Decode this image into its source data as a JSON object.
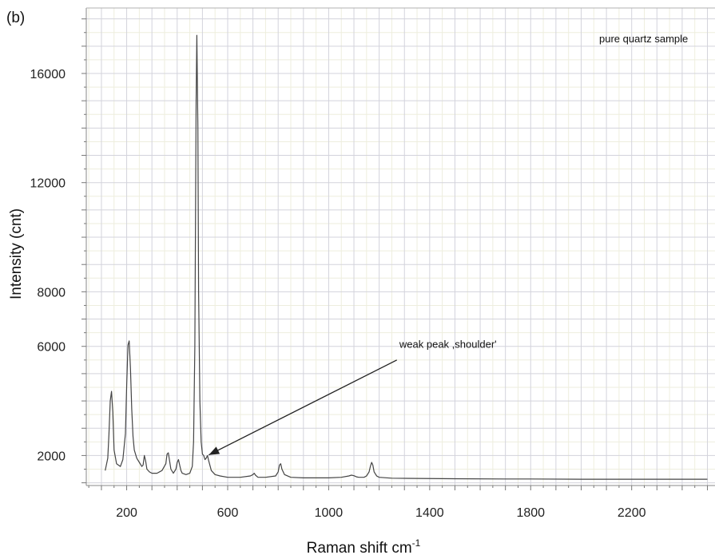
{
  "chart_data": {
    "type": "line",
    "panel_label": "(b)",
    "legend_text": "pure quartz sample",
    "xlabel": "Raman shift cm",
    "xlabel_sup": "-1",
    "ylabel": "Intensity (cnt)",
    "xlim": [
      40,
      2530
    ],
    "ylim": [
      900,
      18400
    ],
    "x_ticks": [
      {
        "value": 200,
        "label": "200"
      },
      {
        "value": 600,
        "label": "600"
      },
      {
        "value": 1000,
        "label": "1000"
      },
      {
        "value": 1400,
        "label": "1400"
      },
      {
        "value": 1800,
        "label": "1800"
      },
      {
        "value": 2200,
        "label": "2200"
      }
    ],
    "y_ticks": [
      {
        "value": 2000,
        "label": "2000"
      },
      {
        "value": 6000,
        "label": "6000"
      },
      {
        "value": 8000,
        "label": "8000"
      },
      {
        "value": 12000,
        "label": "12000"
      },
      {
        "value": 16000,
        "label": "16000"
      }
    ],
    "grid": true,
    "annotation": {
      "text": "weak peak ,shoulder'",
      "text_at": [
        1280,
        5950
      ],
      "arrow_from": [
        1270,
        5500
      ],
      "arrow_to": [
        525,
        2020
      ]
    },
    "series": [
      {
        "color": "#444444",
        "x": [
          115,
          125,
          130,
          135,
          140,
          145,
          150,
          160,
          175,
          185,
          195,
          200,
          205,
          210,
          215,
          220,
          225,
          230,
          240,
          250,
          260,
          265,
          270,
          275,
          280,
          290,
          300,
          320,
          340,
          355,
          360,
          365,
          370,
          375,
          385,
          395,
          400,
          405,
          410,
          415,
          420,
          435,
          450,
          460,
          465,
          470,
          475,
          478,
          482,
          485,
          490,
          495,
          500,
          505,
          510,
          515,
          520,
          525,
          535,
          550,
          570,
          600,
          650,
          690,
          700,
          705,
          710,
          720,
          750,
          790,
          800,
          805,
          810,
          815,
          825,
          850,
          900,
          1000,
          1050,
          1080,
          1090,
          1100,
          1110,
          1120,
          1140,
          1150,
          1160,
          1165,
          1170,
          1175,
          1180,
          1190,
          1200,
          1250,
          1350,
          1500,
          1700,
          1800,
          2000,
          2200,
          2400,
          2500
        ],
        "y": [
          1450,
          1900,
          2800,
          4000,
          4350,
          3600,
          2200,
          1700,
          1600,
          1850,
          2800,
          4600,
          6050,
          6200,
          5200,
          3700,
          2700,
          2200,
          1900,
          1750,
          1600,
          1650,
          2000,
          1800,
          1500,
          1400,
          1350,
          1350,
          1450,
          1700,
          2050,
          2100,
          1800,
          1500,
          1350,
          1500,
          1750,
          1850,
          1650,
          1450,
          1350,
          1300,
          1350,
          1600,
          2500,
          6000,
          15000,
          17400,
          14000,
          8000,
          4000,
          2500,
          2050,
          2000,
          1850,
          1900,
          2000,
          1800,
          1450,
          1300,
          1250,
          1200,
          1200,
          1250,
          1300,
          1350,
          1280,
          1200,
          1200,
          1250,
          1400,
          1650,
          1700,
          1500,
          1300,
          1200,
          1180,
          1180,
          1200,
          1250,
          1280,
          1260,
          1220,
          1200,
          1200,
          1250,
          1400,
          1600,
          1750,
          1650,
          1400,
          1250,
          1200,
          1170,
          1160,
          1150,
          1140,
          1140,
          1130,
          1130,
          1130,
          1130
        ]
      }
    ]
  }
}
